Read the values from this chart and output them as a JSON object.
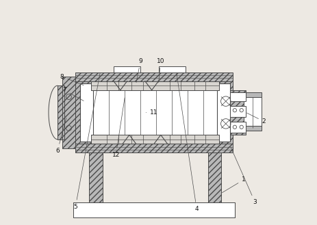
{
  "bg_color": "#ede9e3",
  "lc": "#4a4a4a",
  "fc_hatch": "#b8b8b8",
  "fc_white": "#ffffff",
  "fc_light": "#e0ddd8",
  "lw_main": 0.7,
  "labels": {
    "1": [
      88,
      20,
      78,
      14
    ],
    "2": [
      97,
      46,
      89,
      50
    ],
    "3": [
      93,
      10,
      82,
      35
    ],
    "4": [
      67,
      7,
      58,
      68
    ],
    "5": [
      13,
      8,
      24,
      68
    ],
    "6": [
      5,
      33,
      9,
      48
    ],
    "7": [
      8,
      60,
      17,
      55
    ],
    "8": [
      7,
      66,
      17,
      62
    ],
    "9": [
      42,
      73,
      40,
      63
    ],
    "10": [
      51,
      73,
      50,
      63
    ],
    "11": [
      48,
      50,
      44,
      50
    ],
    "12": [
      31,
      31,
      35,
      57
    ]
  }
}
